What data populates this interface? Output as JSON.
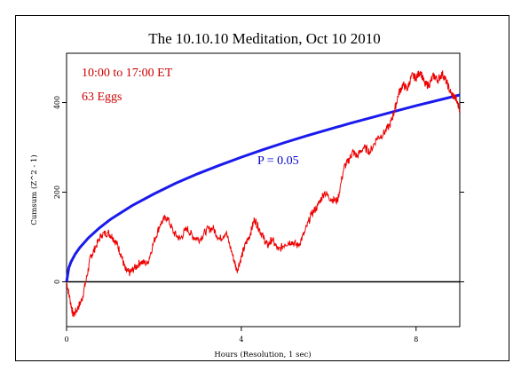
{
  "chart_data": {
    "type": "line",
    "title": "The 10.10.10 Meditation, Oct 10 2010",
    "xlabel": "Hours (Resolution, 1 sec)",
    "ylabel": "Cumsum (Z^2 - 1)",
    "xlim": [
      0,
      9
    ],
    "ylim": [
      -100,
      510
    ],
    "x_ticks": [
      0,
      4,
      8
    ],
    "y_ticks": [
      0,
      200,
      400
    ],
    "grid": false,
    "legend": "none",
    "annotations": [
      {
        "text": "10:00 to 17:00 ET",
        "color": "#cc0000"
      },
      {
        "text": "63 Eggs",
        "color": "#cc0000"
      },
      {
        "text": "P = 0.05",
        "color": "#0000cc"
      }
    ],
    "colors": {
      "cumsum": "#ee0000",
      "envelope": "#1a1aee",
      "baseline": "#000000"
    },
    "series": [
      {
        "role": "cumsum",
        "x": [
          0,
          0.08,
          0.15,
          0.25,
          0.35,
          0.45,
          0.55,
          0.65,
          0.8,
          0.95,
          1.05,
          1.15,
          1.25,
          1.35,
          1.45,
          1.55,
          1.7,
          1.85,
          2.0,
          2.15,
          2.3,
          2.45,
          2.6,
          2.75,
          2.9,
          3.05,
          3.2,
          3.35,
          3.5,
          3.65,
          3.8,
          3.9,
          4.0,
          4.1,
          4.2,
          4.3,
          4.4,
          4.5,
          4.6,
          4.7,
          4.85,
          5.0,
          5.15,
          5.3,
          5.45,
          5.6,
          5.75,
          5.9,
          6.05,
          6.2,
          6.35,
          6.45,
          6.55,
          6.65,
          6.8,
          6.95,
          7.1,
          7.25,
          7.4,
          7.5,
          7.6,
          7.7,
          7.8,
          7.9,
          8.0,
          8.1,
          8.2,
          8.3,
          8.4,
          8.5,
          8.6,
          8.7,
          8.8,
          8.9,
          9.0
        ],
        "y": [
          0,
          -40,
          -75,
          -60,
          -40,
          5,
          55,
          75,
          105,
          110,
          100,
          85,
          60,
          25,
          20,
          30,
          45,
          40,
          90,
          130,
          145,
          110,
          95,
          120,
          100,
          95,
          115,
          120,
          95,
          110,
          60,
          25,
          55,
          85,
          105,
          140,
          120,
          100,
          80,
          95,
          70,
          85,
          90,
          80,
          110,
          150,
          170,
          200,
          185,
          180,
          255,
          270,
          290,
          280,
          300,
          290,
          320,
          330,
          350,
          380,
          420,
          440,
          430,
          460,
          455,
          470,
          440,
          440,
          460,
          450,
          465,
          445,
          420,
          410,
          385
        ]
      },
      {
        "role": "envelope",
        "label": "P = 0.05",
        "x": [
          0,
          0.05,
          0.1,
          0.2,
          0.3,
          0.5,
          0.75,
          1.0,
          1.5,
          2.0,
          2.5,
          3.0,
          3.5,
          4.0,
          4.5,
          5.0,
          5.5,
          6.0,
          6.5,
          7.0,
          7.5,
          8.0,
          8.5,
          9.0
        ],
        "y": [
          0,
          31,
          44,
          62,
          76,
          98,
          120,
          139,
          170,
          196,
          220,
          241,
          260,
          278,
          295,
          311,
          326,
          340,
          354,
          367,
          380,
          393,
          405,
          417
        ]
      }
    ]
  }
}
